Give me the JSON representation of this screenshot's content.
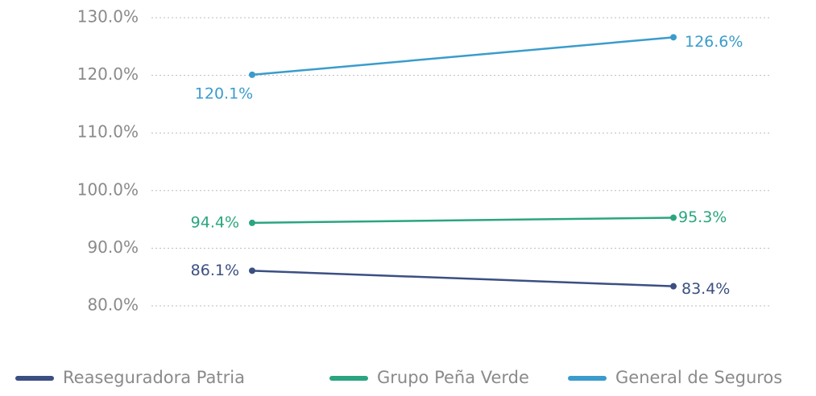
{
  "chart_data": {
    "type": "line",
    "categories": [
      null,
      null
    ],
    "series": [
      {
        "name": "Reaseguradora Patria",
        "color": "#3b4f82",
        "values": [
          86.1,
          83.4
        ],
        "value_labels": [
          "86.1%",
          "83.4%"
        ]
      },
      {
        "name": "Grupo Peña Verde",
        "color": "#2aa57f",
        "values": [
          94.4,
          95.3
        ],
        "value_labels": [
          "94.4%",
          "95.3%"
        ]
      },
      {
        "name": "General de Seguros",
        "color": "#3a9ccc",
        "values": [
          120.1,
          126.6
        ],
        "value_labels": [
          "120.1%",
          "126.6%"
        ]
      }
    ],
    "ylim": [
      80,
      130
    ],
    "yticks": [
      {
        "value": 80,
        "label": "80.0%"
      },
      {
        "value": 90,
        "label": "90.0%"
      },
      {
        "value": 100,
        "label": "100.0%"
      },
      {
        "value": 110,
        "label": "110.0%"
      },
      {
        "value": 120,
        "label": "120.0%"
      },
      {
        "value": 130,
        "label": "130.0%"
      }
    ],
    "grid": true,
    "legend": "bottom"
  }
}
